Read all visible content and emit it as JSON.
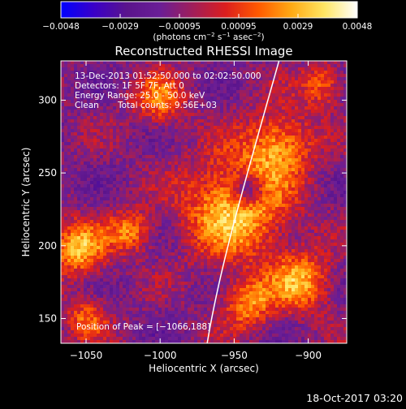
{
  "chart_data": {
    "type": "heatmap",
    "title": "Reconstructed RHESSI Image",
    "xlabel": "Heliocentric X (arcsec)",
    "ylabel": "Heliocentric Y (arcsec)",
    "xlim": [
      -1067,
      -874
    ],
    "ylim": [
      133,
      327
    ],
    "x_ticks": [
      "−1050",
      "−1000",
      "−950",
      "−900"
    ],
    "x_tick_values": [
      -1050,
      -1000,
      -950,
      -900
    ],
    "y_ticks": [
      "150",
      "200",
      "250",
      "300"
    ],
    "y_tick_values": [
      150,
      200,
      250,
      300
    ],
    "colorbar": {
      "range": [
        -0.0048,
        0.0048
      ],
      "tick_labels": [
        "−0.0048",
        "−0.0029",
        "−0.00095",
        "0.00095",
        "0.0029",
        "0.0048"
      ],
      "units_prefix": "(photons cm",
      "units_exp1": "−2",
      "units_mid": " s",
      "units_exp2": "−1",
      "units_mid2": " asec",
      "units_exp3": "−2",
      "units_suffix": ")",
      "colormap": [
        "#0000ff",
        "#3a00c8",
        "#5a148c",
        "#6a1e96",
        "#a01e5a",
        "#dc1e1e",
        "#ff5a00",
        "#ffaa14",
        "#ffe664",
        "#ffffff"
      ]
    },
    "info": {
      "line1": "13-Dec-2013 01:52:50.000 to 02:02:50.000",
      "line2": "Detectors: 1F 5F 7F, Att 0",
      "line3": "Energy Range: 25.0 - 50.0 keV",
      "line4_a": "Clean",
      "line4_b": "Total counts: 9.56E+03"
    },
    "peak_label": "Position of Peak = [−1066,188]",
    "peak": [
      -1066,
      188
    ],
    "limb_line_color": "#ffffff",
    "sources": [
      {
        "x": -948,
        "y": 226,
        "r": 24,
        "amp": 0.0048
      },
      {
        "x": -1055,
        "y": 198,
        "r": 13,
        "amp": 0.0042
      },
      {
        "x": -1020,
        "y": 210,
        "r": 10,
        "amp": 0.0032
      },
      {
        "x": -920,
        "y": 270,
        "r": 16,
        "amp": 0.0036
      },
      {
        "x": -905,
        "y": 175,
        "r": 14,
        "amp": 0.0038
      },
      {
        "x": -1000,
        "y": 300,
        "r": 12,
        "amp": 0.003
      },
      {
        "x": -940,
        "y": 160,
        "r": 12,
        "amp": 0.0034
      },
      {
        "x": -890,
        "y": 310,
        "r": 10,
        "amp": 0.003
      },
      {
        "x": -1050,
        "y": 150,
        "r": 10,
        "amp": 0.0026
      }
    ]
  },
  "timestamp": "18-Oct-2017 03:20"
}
